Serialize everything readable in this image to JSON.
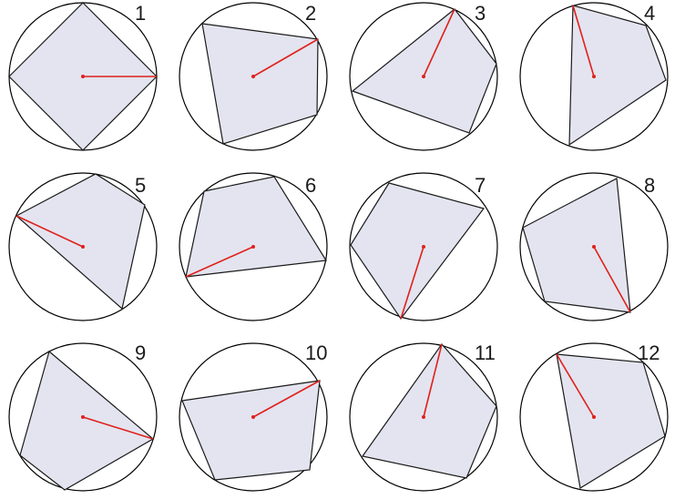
{
  "figure": {
    "panels": [
      {
        "number": "1"
      },
      {
        "number": "2"
      },
      {
        "number": "3"
      },
      {
        "number": "4"
      },
      {
        "number": "5"
      },
      {
        "number": "6"
      },
      {
        "number": "7"
      },
      {
        "number": "8"
      },
      {
        "number": "9"
      },
      {
        "number": "10"
      },
      {
        "number": "11"
      },
      {
        "number": "12"
      }
    ],
    "colors": {
      "polygon_fill": "#e3e4ef",
      "polygon_stroke": "#1a1a1a",
      "radius_line": "#e0201b",
      "circle_stroke": "#000000"
    }
  }
}
